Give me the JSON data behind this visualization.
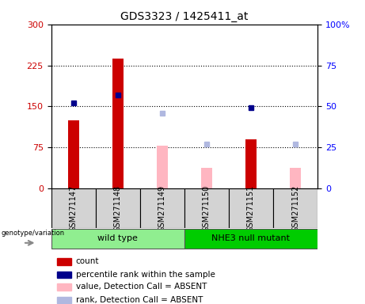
{
  "title": "GDS3323 / 1425411_at",
  "samples": [
    "GSM271147",
    "GSM271148",
    "GSM271149",
    "GSM271150",
    "GSM271151",
    "GSM271152"
  ],
  "count_values": [
    125,
    238,
    null,
    null,
    90,
    null
  ],
  "percentile_rank_values": [
    52,
    57,
    null,
    null,
    49,
    null
  ],
  "absent_value_values": [
    null,
    null,
    78,
    38,
    null,
    38
  ],
  "absent_rank_values": [
    null,
    null,
    46,
    27,
    null,
    27
  ],
  "ylim_left": [
    0,
    300
  ],
  "ylim_right": [
    0,
    100
  ],
  "yticks_left": [
    0,
    75,
    150,
    225,
    300
  ],
  "yticks_right": [
    0,
    25,
    50,
    75,
    100
  ],
  "hlines": [
    75,
    150,
    225
  ],
  "count_color": "#cc0000",
  "percentile_color": "#00008b",
  "absent_value_color": "#ffb6c1",
  "absent_rank_color": "#b0b8e0",
  "wt_color": "#90ee90",
  "nhe_color": "#00cc00",
  "sample_bg_color": "#d3d3d3",
  "legend_items": [
    {
      "label": "count",
      "color": "#cc0000"
    },
    {
      "label": "percentile rank within the sample",
      "color": "#00008b"
    },
    {
      "label": "value, Detection Call = ABSENT",
      "color": "#ffb6c1"
    },
    {
      "label": "rank, Detection Call = ABSENT",
      "color": "#b0b8e0"
    }
  ]
}
